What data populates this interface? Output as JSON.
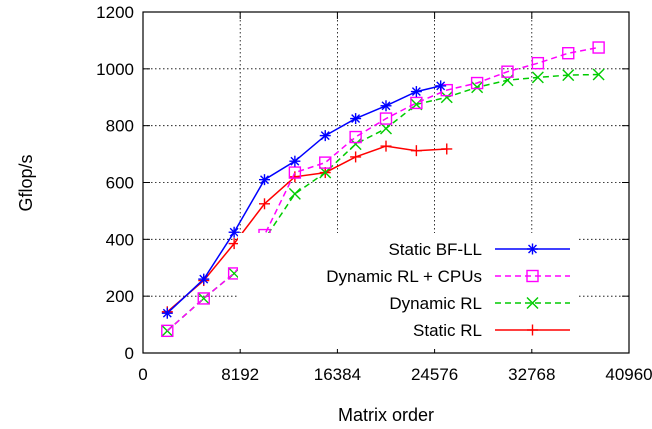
{
  "chart_data": {
    "type": "line",
    "title": "",
    "xlabel": "Matrix order",
    "ylabel": "Gflop/s",
    "xlim": [
      0,
      40960
    ],
    "ylim": [
      0,
      1200
    ],
    "xticks": [
      0,
      8192,
      16384,
      24576,
      32768,
      40960
    ],
    "yticks": [
      0,
      200,
      400,
      600,
      800,
      1000,
      1200
    ],
    "grid": true,
    "legend_position": "bottom-right",
    "series": [
      {
        "name": "Static BF-LL",
        "color": "#0000ff",
        "dash": "solid",
        "marker": "asterisk",
        "x": [
          2048,
          5120,
          7680,
          10240,
          12800,
          15360,
          17920,
          20480,
          23040,
          25088
        ],
        "y": [
          140,
          260,
          425,
          610,
          675,
          765,
          825,
          870,
          920,
          940
        ]
      },
      {
        "name": "Dynamic RL + CPUs",
        "color": "#ff00ff",
        "dash": "dashed",
        "marker": "square",
        "x": [
          2048,
          5120,
          7680,
          10240,
          12800,
          15360,
          17920,
          20480,
          23040,
          25600,
          28160,
          30720,
          33280,
          35840,
          38400
        ],
        "y": [
          78,
          192,
          280,
          415,
          635,
          670,
          760,
          825,
          880,
          925,
          950,
          990,
          1020,
          1055,
          1075
        ]
      },
      {
        "name": "Dynamic RL",
        "color": "#00cc00",
        "dash": "dashed",
        "marker": "x",
        "x": [
          2048,
          5120,
          7680,
          10240,
          12800,
          15360,
          17920,
          20480,
          23040,
          25600,
          28160,
          30720,
          33280,
          35840,
          38400
        ],
        "y": [
          78,
          192,
          280,
          400,
          560,
          635,
          735,
          790,
          875,
          900,
          935,
          960,
          970,
          978,
          980
        ]
      },
      {
        "name": "Static RL",
        "color": "#ff0000",
        "dash": "solid",
        "marker": "plus",
        "x": [
          2048,
          5120,
          7680,
          10240,
          12800,
          15360,
          17920,
          20480,
          23040,
          25600
        ],
        "y": [
          145,
          255,
          385,
          525,
          620,
          635,
          690,
          728,
          712,
          718
        ]
      }
    ]
  }
}
